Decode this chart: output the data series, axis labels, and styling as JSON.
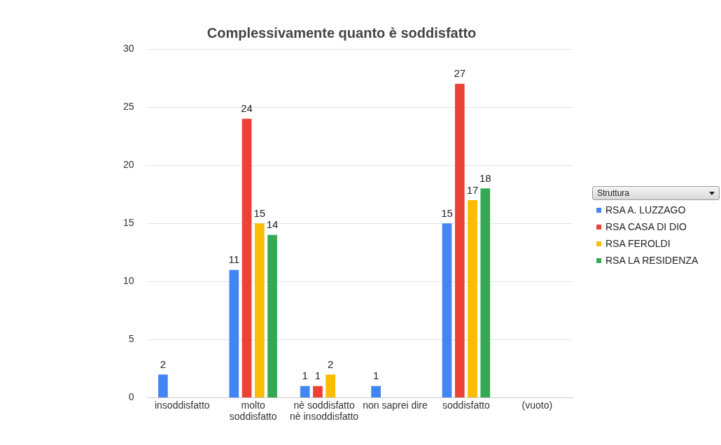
{
  "chart_data": {
    "type": "bar",
    "title": "Complessivamente quanto è soddisfatto",
    "categories": [
      "insoddisfatto",
      "molto soddisfatto",
      "nè soddisfatto nè insoddisfatto",
      "non saprei dire",
      "soddisfatto",
      "(vuoto)"
    ],
    "series": [
      {
        "name": "RSA A. LUZZAGO",
        "color": "#4285f4",
        "values": [
          2,
          11,
          1,
          1,
          15,
          null
        ]
      },
      {
        "name": "RSA CASA DI DIO",
        "color": "#ea4335",
        "values": [
          null,
          24,
          1,
          null,
          27,
          null
        ]
      },
      {
        "name": "RSA FEROLDI",
        "color": "#fbbc04",
        "values": [
          null,
          15,
          2,
          null,
          17,
          null
        ]
      },
      {
        "name": "RSA LA RESIDENZA",
        "color": "#34a853",
        "values": [
          null,
          14,
          null,
          null,
          18,
          null
        ]
      }
    ],
    "legend_title": "Struttura",
    "ylim": [
      0,
      30
    ],
    "yticks": [
      0,
      5,
      10,
      15,
      20,
      25,
      30
    ],
    "grid": "y",
    "legend": "right",
    "data_labels": true
  }
}
